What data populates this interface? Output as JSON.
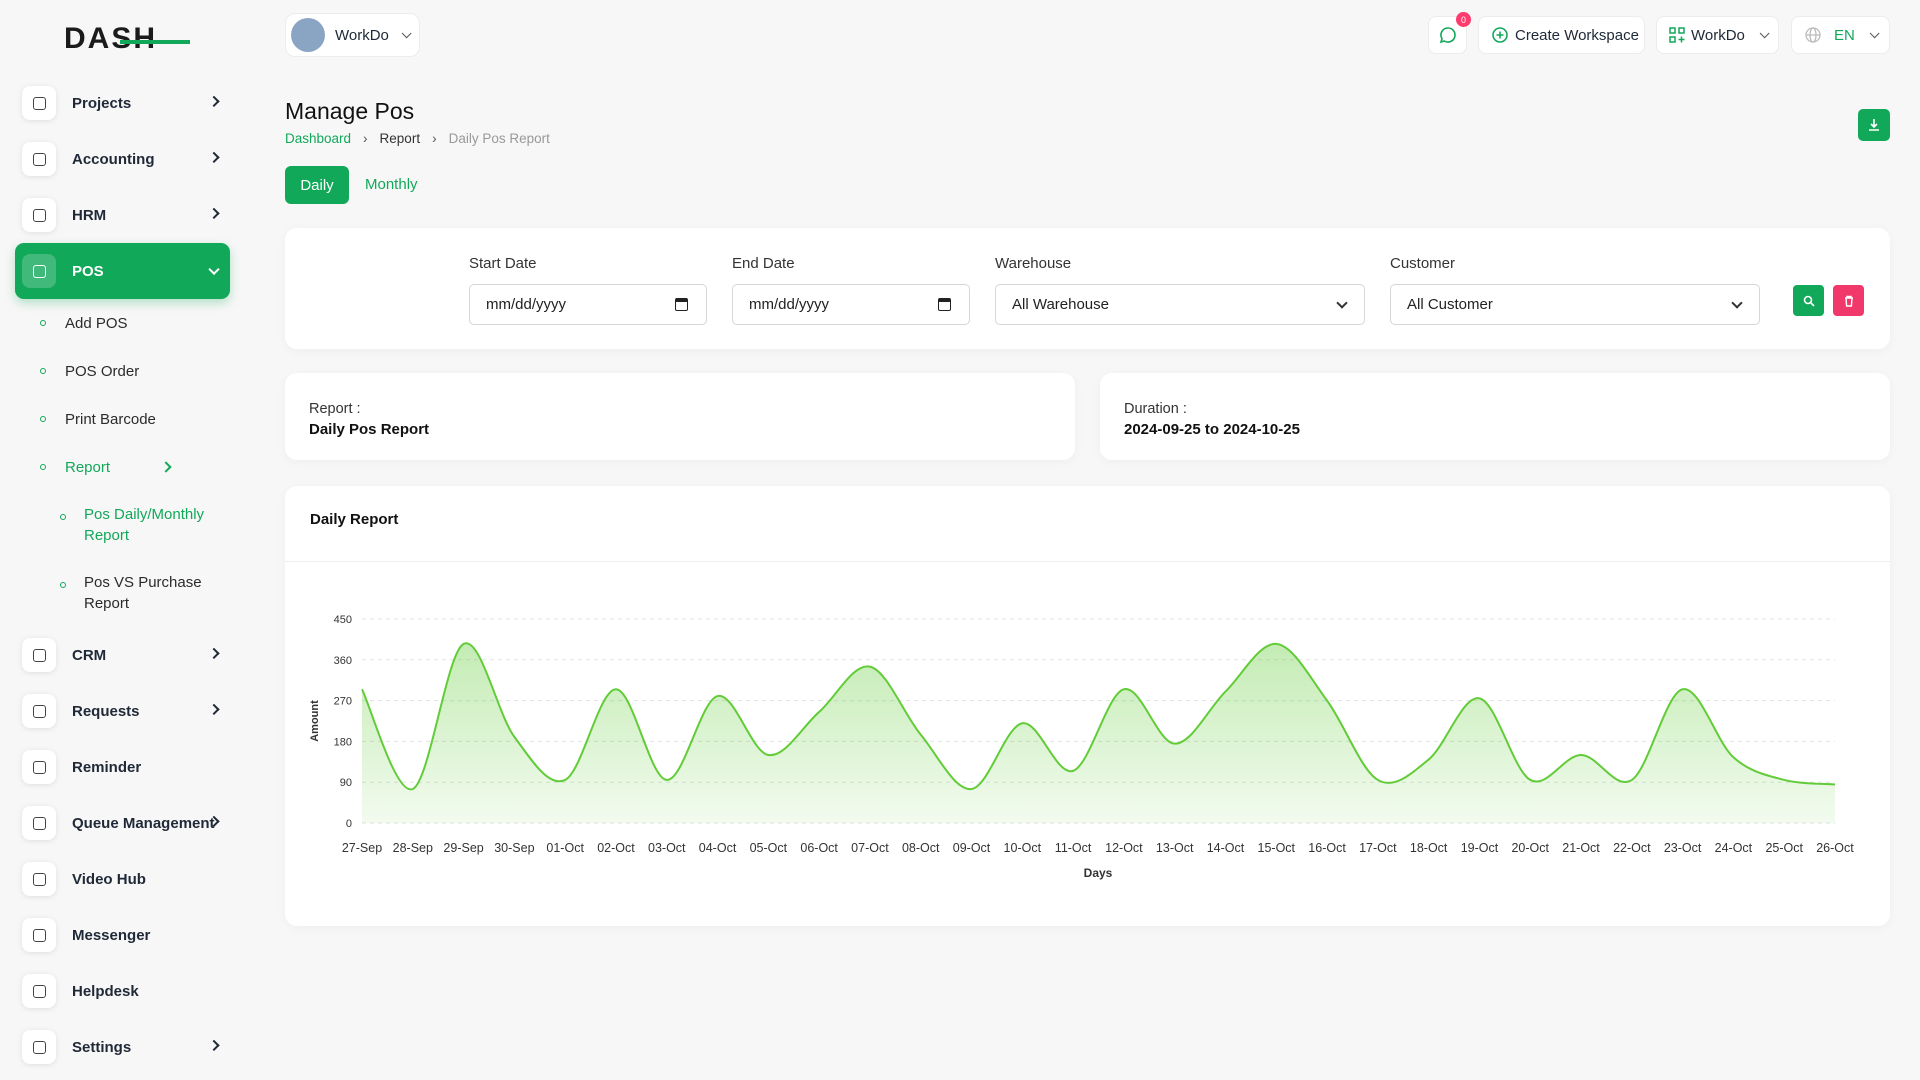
{
  "logo": "DASH",
  "header": {
    "workspace": "WorkDo",
    "notifications": 0,
    "create_workspace": "Create Workspace",
    "user": "WorkDo",
    "language": "EN"
  },
  "sidebar": [
    {
      "label": "Projects",
      "arrow": true
    },
    {
      "label": "Accounting",
      "arrow": true
    },
    {
      "label": "HRM",
      "arrow": true
    },
    {
      "label": "POS",
      "arrow": true,
      "active": true,
      "children": [
        {
          "label": "Add POS"
        },
        {
          "label": "POS Order"
        },
        {
          "label": "Print Barcode"
        },
        {
          "label": "Report",
          "arrow": true,
          "active": true,
          "children": [
            {
              "label": "Pos Daily/Monthly Report",
              "active": true
            },
            {
              "label": "Pos VS Purchase Report"
            }
          ]
        }
      ]
    },
    {
      "label": "CRM",
      "arrow": true
    },
    {
      "label": "Requests",
      "arrow": true
    },
    {
      "label": "Reminder",
      "arrow": false
    },
    {
      "label": "Queue Management",
      "arrow": true
    },
    {
      "label": "Video Hub",
      "arrow": false
    },
    {
      "label": "Messenger",
      "arrow": false
    },
    {
      "label": "Helpdesk",
      "arrow": false
    },
    {
      "label": "Settings",
      "arrow": true
    }
  ],
  "page": {
    "title": "Manage Pos",
    "breadcrumb": [
      "Dashboard",
      "Report",
      "Daily Pos Report"
    ],
    "tabs": [
      "Daily",
      "Monthly"
    ]
  },
  "filters": {
    "start_date": {
      "label": "Start Date",
      "placeholder": "mm/dd/yyyy"
    },
    "end_date": {
      "label": "End Date",
      "placeholder": "mm/dd/yyyy"
    },
    "warehouse": {
      "label": "Warehouse",
      "value": "All Warehouse"
    },
    "customer": {
      "label": "Customer",
      "value": "All Customer"
    }
  },
  "info": {
    "report_label": "Report :",
    "report": "Daily Pos Report",
    "duration_label": "Duration :",
    "duration": "2024-09-25 to 2024-10-25"
  },
  "chart_data": {
    "type": "area",
    "title": "Daily Report",
    "x_label": "Days",
    "y_label": "Amount",
    "categories": [
      "27-Sep",
      "28-Sep",
      "29-Sep",
      "30-Sep",
      "01-Oct",
      "02-Oct",
      "03-Oct",
      "04-Oct",
      "05-Oct",
      "06-Oct",
      "07-Oct",
      "08-Oct",
      "09-Oct",
      "10-Oct",
      "11-Oct",
      "12-Oct",
      "13-Oct",
      "14-Oct",
      "15-Oct",
      "16-Oct",
      "17-Oct",
      "18-Oct",
      "19-Oct",
      "20-Oct",
      "21-Oct",
      "22-Oct",
      "23-Oct",
      "24-Oct",
      "25-Oct",
      "26-Oct"
    ],
    "values": [
      295,
      75,
      395,
      190,
      95,
      295,
      95,
      280,
      150,
      245,
      345,
      195,
      75,
      220,
      115,
      295,
      175,
      290,
      395,
      270,
      95,
      140,
      275,
      95,
      150,
      95,
      295,
      145,
      95,
      85
    ],
    "color": "#62cc38",
    "ylim": [
      0,
      450
    ],
    "yticks": [
      0,
      90,
      180,
      270,
      360,
      450
    ],
    "grid": true
  }
}
